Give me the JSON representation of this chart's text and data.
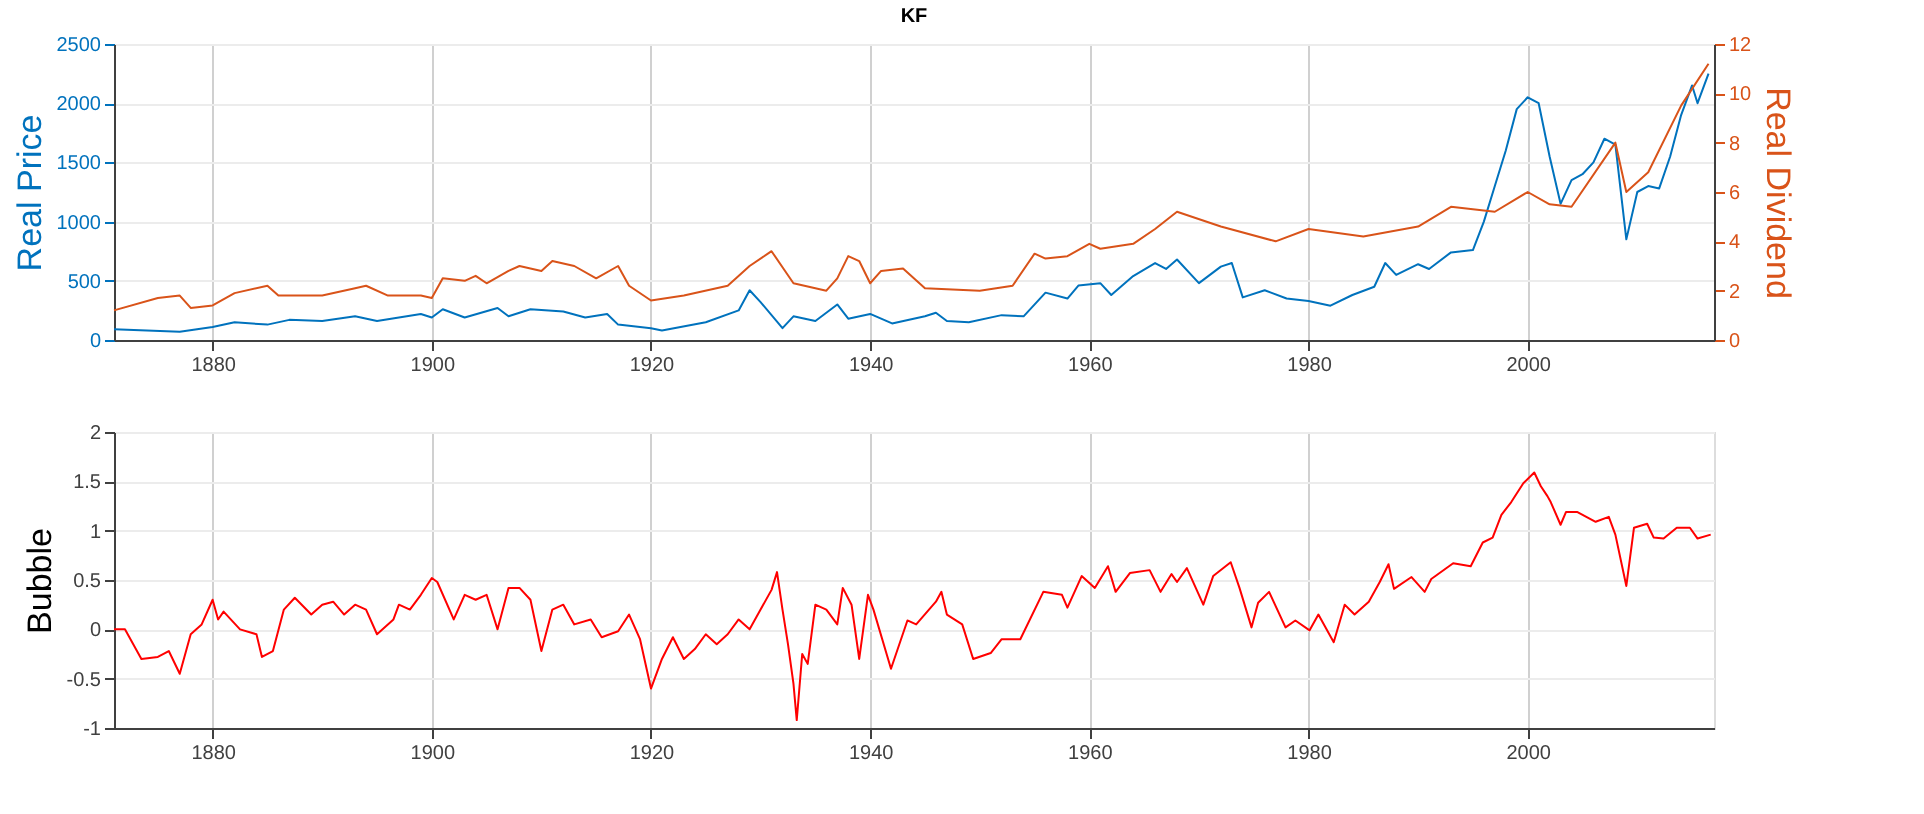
{
  "chart_data": [
    {
      "type": "line",
      "title": "KF",
      "ylabel": "Real Price",
      "y2label": "Real Dividend",
      "xlim": [
        1871,
        2017
      ],
      "xticks": [
        1880,
        1900,
        1920,
        1940,
        1960,
        1980,
        2000
      ],
      "ylim": [
        0,
        2500
      ],
      "yticks": [
        0,
        500,
        1000,
        1500,
        2000,
        2500
      ],
      "y2lim": [
        0,
        12
      ],
      "y2ticks": [
        0,
        2,
        4,
        6,
        8,
        10,
        12
      ],
      "grid": true,
      "series": [
        {
          "color": "#0072bd",
          "x": [
            1871,
            1877,
            1880,
            1882,
            1885,
            1887,
            1890,
            1893,
            1895,
            1899,
            1900,
            1901,
            1903,
            1906,
            1907,
            1909,
            1912,
            1914,
            1916,
            1917,
            1920,
            1921,
            1925,
            1928,
            1929,
            1930,
            1932,
            1933,
            1935,
            1937,
            1938,
            1940,
            1942,
            1945,
            1946,
            1947,
            1949,
            1952,
            1954,
            1956,
            1958,
            1959,
            1961,
            1962,
            1964,
            1966,
            1967,
            1968,
            1970,
            1972,
            1973,
            1974,
            1976,
            1978,
            1980,
            1982,
            1984,
            1986,
            1987,
            1988,
            1990,
            1991,
            1993,
            1995,
            1996,
            1997,
            1998,
            1999,
            2000,
            2001,
            2002,
            2003,
            2004,
            2005,
            2006,
            2007,
            2008,
            2009,
            2010,
            2011,
            2012,
            2013,
            2014,
            2015,
            2015.5,
            2016.5
          ],
          "values": [
            90,
            70,
            110,
            150,
            130,
            170,
            160,
            200,
            160,
            220,
            190,
            260,
            190,
            270,
            200,
            260,
            240,
            190,
            220,
            130,
            100,
            80,
            150,
            250,
            420,
            320,
            100,
            200,
            160,
            300,
            180,
            220,
            140,
            200,
            230,
            160,
            150,
            210,
            200,
            400,
            350,
            460,
            480,
            380,
            540,
            650,
            600,
            680,
            480,
            620,
            650,
            360,
            420,
            350,
            330,
            290,
            380,
            450,
            650,
            550,
            640,
            600,
            740,
            760,
            1000,
            1300,
            1600,
            1950,
            2050,
            2000,
            1550,
            1150,
            1350,
            1400,
            1500,
            1700,
            1650,
            850,
            1250,
            1300,
            1280,
            1550,
            1900,
            2150,
            2000,
            2250
          ]
        },
        {
          "color": "#d95319",
          "axis": "y2",
          "x": [
            1871,
            1875,
            1877,
            1878,
            1880,
            1882,
            1885,
            1886,
            1890,
            1893,
            1894,
            1896,
            1899,
            1900,
            1901,
            1903,
            1904,
            1905,
            1907,
            1908,
            1910,
            1911,
            1913,
            1915,
            1917,
            1918,
            1920,
            1923,
            1927,
            1929,
            1931,
            1933,
            1936,
            1937,
            1938,
            1939,
            1940,
            1941,
            1943,
            1945,
            1950,
            1953,
            1955,
            1956,
            1958,
            1960,
            1961,
            1964,
            1966,
            1968,
            1972,
            1977,
            1980,
            1985,
            1990,
            1993,
            1997,
            2000,
            2002,
            2004,
            2008,
            2009,
            2011,
            2014,
            2016.5
          ],
          "values": [
            1.2,
            1.7,
            1.8,
            1.3,
            1.4,
            1.9,
            2.2,
            1.8,
            1.8,
            2.1,
            2.2,
            1.8,
            1.8,
            1.7,
            2.5,
            2.4,
            2.6,
            2.3,
            2.8,
            3.0,
            2.8,
            3.2,
            3.0,
            2.5,
            3.0,
            2.2,
            1.6,
            1.8,
            2.2,
            3.0,
            3.6,
            2.3,
            2.0,
            2.5,
            3.4,
            3.2,
            2.3,
            2.8,
            2.9,
            2.1,
            2.0,
            2.2,
            3.5,
            3.3,
            3.4,
            3.9,
            3.7,
            3.9,
            4.5,
            5.2,
            4.6,
            4.0,
            4.5,
            4.2,
            4.6,
            5.4,
            5.2,
            6.0,
            5.5,
            5.4,
            8.0,
            6.0,
            6.8,
            9.5,
            11.2
          ]
        }
      ]
    },
    {
      "type": "line",
      "ylabel": "Bubble",
      "xlim": [
        1871,
        2017
      ],
      "xticks": [
        1880,
        1900,
        1920,
        1940,
        1960,
        1980,
        2000
      ],
      "ylim": [
        -1,
        2
      ],
      "yticks": [
        -1,
        -0.5,
        0,
        0.5,
        1,
        1.5,
        2
      ],
      "grid": true,
      "series": [
        {
          "color": "#ff0000",
          "x": [
            1871,
            1872,
            1873.5,
            1875,
            1876,
            1877,
            1878,
            1879,
            1880,
            1880.5,
            1881,
            1882.5,
            1884,
            1884.5,
            1885.5,
            1886.5,
            1887.5,
            1889,
            1890,
            1891,
            1892,
            1893,
            1894,
            1895,
            1896.5,
            1897,
            1898,
            1899,
            1900,
            1900.5,
            1902,
            1903,
            1904,
            1905,
            1906,
            1907,
            1908,
            1909,
            1910,
            1911,
            1912,
            1913,
            1914.5,
            1915.5,
            1917,
            1918,
            1919,
            1920,
            1921,
            1922,
            1923,
            1924,
            1925,
            1926,
            1927,
            1928,
            1929,
            1930,
            1931,
            1931.5,
            1932,
            1932.5,
            1933,
            1933.3,
            1933.8,
            1934.3,
            1935,
            1936,
            1937,
            1937.5,
            1938.3,
            1939,
            1939.8,
            1940.3,
            1941.9,
            1943.4,
            1944.2,
            1946,
            1946.5,
            1947,
            1948.4,
            1949.4,
            1951,
            1952,
            1953.7,
            1955.8,
            1957.5,
            1958,
            1959.3,
            1960.5,
            1961.7,
            1962.4,
            1963.7,
            1965.5,
            1966.5,
            1967.5,
            1968,
            1968.9,
            1970.4,
            1971.3,
            1972.9,
            1973.7,
            1974.8,
            1975.4,
            1976.4,
            1977.9,
            1978.8,
            1980.1,
            1980.9,
            1982.3,
            1983.3,
            1984.2,
            1985.5,
            1986.5,
            1987.3,
            1987.8,
            1989.4,
            1990.6,
            1991.2,
            1993.2,
            1994.8,
            1995.9,
            1996.8,
            1997.6,
            1998.5,
            1999.6,
            2000.6,
            2001.2,
            2001.8,
            2002.1,
            2003,
            2003.5,
            2004.5,
            2006.2,
            2007.4,
            2008,
            2009,
            2009.7,
            2010.9,
            2011.5,
            2012.4,
            2013.6,
            2014.8,
            2015.5,
            2016.7
          ],
          "values": [
            0,
            0,
            -0.3,
            -0.28,
            -0.22,
            -0.45,
            -0.05,
            0.05,
            0.3,
            0.1,
            0.18,
            0,
            -0.05,
            -0.28,
            -0.22,
            0.2,
            0.32,
            0.15,
            0.25,
            0.28,
            0.15,
            0.25,
            0.2,
            -0.05,
            0.1,
            0.25,
            0.2,
            0.35,
            0.52,
            0.48,
            0.1,
            0.35,
            0.3,
            0.35,
            0,
            0.42,
            0.42,
            0.3,
            -0.22,
            0.2,
            0.25,
            0.05,
            0.1,
            -0.08,
            -0.02,
            0.15,
            -0.1,
            -0.6,
            -0.3,
            -0.08,
            -0.3,
            -0.2,
            -0.05,
            -0.15,
            -0.05,
            0.1,
            0,
            0.2,
            0.4,
            0.58,
            0.2,
            -0.15,
            -0.55,
            -0.92,
            -0.25,
            -0.35,
            0.25,
            0.2,
            0.05,
            0.42,
            0.25,
            -0.3,
            0.35,
            0.2,
            -0.4,
            0.09,
            0.05,
            0.28,
            0.38,
            0.15,
            0.05,
            -0.3,
            -0.24,
            -0.1,
            -0.1,
            0.38,
            0.35,
            0.22,
            0.54,
            0.42,
            0.64,
            0.38,
            0.57,
            0.6,
            0.38,
            0.56,
            0.48,
            0.62,
            0.25,
            0.54,
            0.68,
            0.42,
            0.02,
            0.27,
            0.38,
            0.02,
            0.09,
            -0.01,
            0.15,
            -0.13,
            0.25,
            0.15,
            0.28,
            0.48,
            0.66,
            0.41,
            0.53,
            0.38,
            0.51,
            0.67,
            0.64,
            0.88,
            0.93,
            1.16,
            1.29,
            1.48,
            1.59,
            1.45,
            1.35,
            1.29,
            1.06,
            1.19,
            1.19,
            1.09,
            1.14,
            0.96,
            0.44,
            1.03,
            1.07,
            0.93,
            0.92,
            1.03,
            1.03,
            0.92,
            0.96
          ]
        }
      ]
    }
  ]
}
